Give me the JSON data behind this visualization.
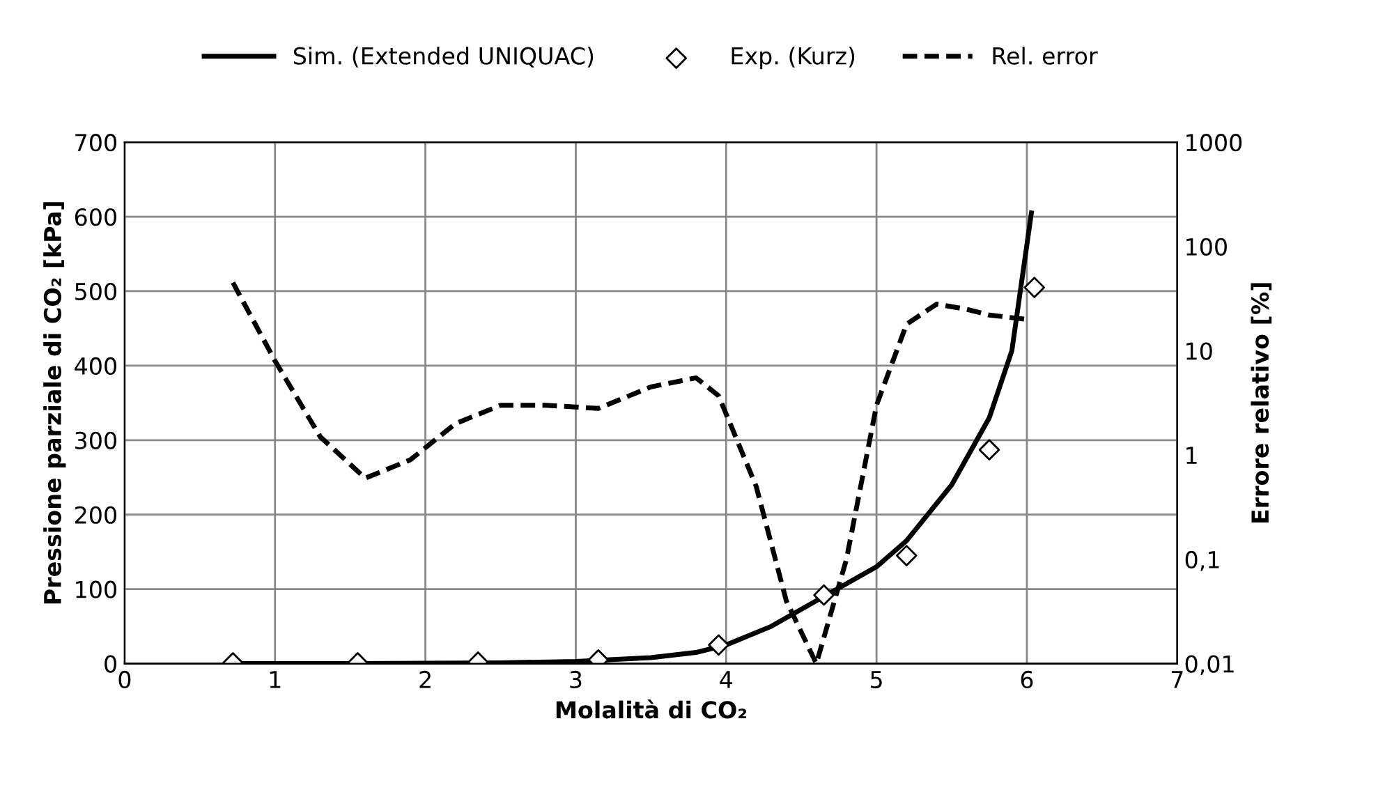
{
  "chart_data": {
    "type": "line",
    "xlabel": "Molalità di CO₂",
    "ylabel": "Pressione parziale di CO₂ [kPa]",
    "y2label": "Errore relativo [%]",
    "xlim": [
      0,
      7
    ],
    "xticks": [
      0,
      1,
      2,
      3,
      4,
      5,
      6,
      7
    ],
    "ylim": [
      0,
      700
    ],
    "yticks": [
      0,
      100,
      200,
      300,
      400,
      500,
      600,
      700
    ],
    "y2lim": [
      0.01,
      1000
    ],
    "y2ticks": [
      {
        "value": 0.01,
        "label": "0,01"
      },
      {
        "value": 0.1,
        "label": "0,1"
      },
      1,
      10,
      100,
      1000
    ],
    "log": "y2",
    "grid": true,
    "legend": "top",
    "series": [
      {
        "name": "Sim. (Extended UNIQUAC)",
        "color": "#000000",
        "line_style": "solid",
        "marker": "none",
        "x": [
          0.72,
          1.5,
          2.5,
          3.0,
          3.5,
          3.8,
          4.0,
          4.3,
          4.65,
          5.0,
          5.2,
          5.5,
          5.75,
          5.9,
          6.03
        ],
        "values": [
          0,
          0,
          1,
          3,
          8,
          15,
          25,
          50,
          90,
          130,
          165,
          240,
          330,
          420,
          605
        ]
      },
      {
        "name": "Exp. (Kurz)",
        "type": "scatter",
        "color": "#000000",
        "marker": "diamond",
        "x": [
          0.72,
          1.55,
          2.35,
          3.15,
          3.95,
          4.65,
          5.2,
          5.75,
          6.05
        ],
        "values": [
          1,
          1,
          2,
          5,
          25,
          92,
          145,
          287,
          505
        ]
      },
      {
        "name": "Rel. error",
        "axis": "y2",
        "color": "#000000",
        "line_style": "dashed",
        "marker": "none",
        "x": [
          0.72,
          1.0,
          1.3,
          1.6,
          1.9,
          2.2,
          2.5,
          2.8,
          3.15,
          3.5,
          3.8,
          3.95,
          4.2,
          4.4,
          4.6,
          4.8,
          5.0,
          5.2,
          5.4,
          5.6,
          5.75,
          6.0
        ],
        "values": [
          45,
          8,
          1.5,
          0.6,
          0.9,
          2.0,
          3.0,
          3.0,
          2.8,
          4.5,
          5.5,
          3.7,
          0.5,
          0.04,
          0.01,
          0.1,
          3,
          18,
          28,
          25,
          22,
          20
        ]
      }
    ]
  }
}
